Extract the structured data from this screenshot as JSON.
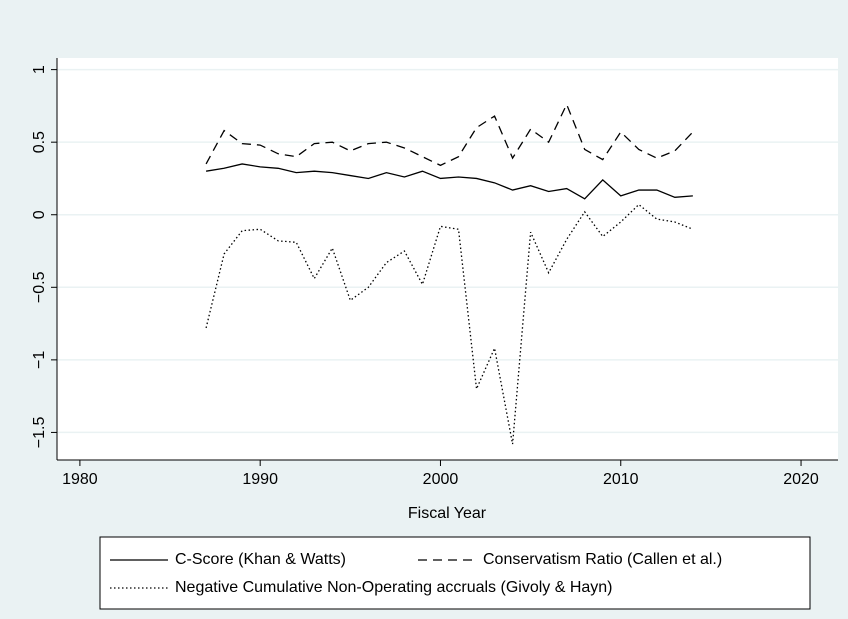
{
  "chart_data": {
    "type": "line",
    "x_label": "Fiscal Year",
    "x": [
      1987,
      1988,
      1989,
      1990,
      1991,
      1992,
      1993,
      1994,
      1995,
      1996,
      1997,
      1998,
      1999,
      2000,
      2001,
      2002,
      2003,
      2004,
      2005,
      2006,
      2007,
      2008,
      2009,
      2010,
      2011,
      2012,
      2013,
      2014
    ],
    "series": [
      {
        "name": "C-Score (Khan & Watts)",
        "color": "#000000",
        "style": "solid",
        "values": [
          0.3,
          0.32,
          0.35,
          0.33,
          0.32,
          0.29,
          0.3,
          0.29,
          0.27,
          0.25,
          0.29,
          0.26,
          0.3,
          0.25,
          0.26,
          0.25,
          0.22,
          0.17,
          0.2,
          0.16,
          0.18,
          0.11,
          0.24,
          0.13,
          0.17,
          0.17,
          0.12,
          0.13
        ]
      },
      {
        "name": "Conservatism Ratio (Callen et al.)",
        "color": "#000000",
        "style": "dash",
        "values": [
          0.35,
          0.58,
          0.49,
          0.48,
          0.42,
          0.4,
          0.49,
          0.5,
          0.44,
          0.49,
          0.5,
          0.46,
          0.4,
          0.34,
          0.4,
          0.6,
          0.68,
          0.39,
          0.59,
          0.5,
          0.76,
          0.45,
          0.38,
          0.57,
          0.45,
          0.39,
          0.44,
          0.57
        ]
      },
      {
        "name": "Negative Cumulative Non-Operating accruals (Givoly & Hayn)",
        "color": "#000000",
        "style": "dot",
        "values": [
          -0.78,
          -0.27,
          -0.11,
          -0.1,
          -0.18,
          -0.19,
          -0.44,
          -0.23,
          -0.59,
          -0.5,
          -0.33,
          -0.25,
          -0.48,
          -0.08,
          -0.1,
          -1.2,
          -0.92,
          -1.58,
          -0.12,
          -0.4,
          -0.17,
          0.02,
          -0.15,
          -0.05,
          0.07,
          -0.03,
          -0.05,
          -0.1
        ]
      }
    ],
    "xlim": [
      1978.73,
      2022.05
    ],
    "xticks": [
      1980,
      1990,
      2000,
      2010,
      2020
    ],
    "ylim": [
      -1.69,
      1.08
    ],
    "yticks": [
      {
        "value": -1.5,
        "label": "−1.5"
      },
      {
        "value": -1,
        "label": "−1"
      },
      {
        "value": -0.5,
        "label": "−0.5"
      },
      0,
      0.5,
      1
    ],
    "grid": true
  }
}
